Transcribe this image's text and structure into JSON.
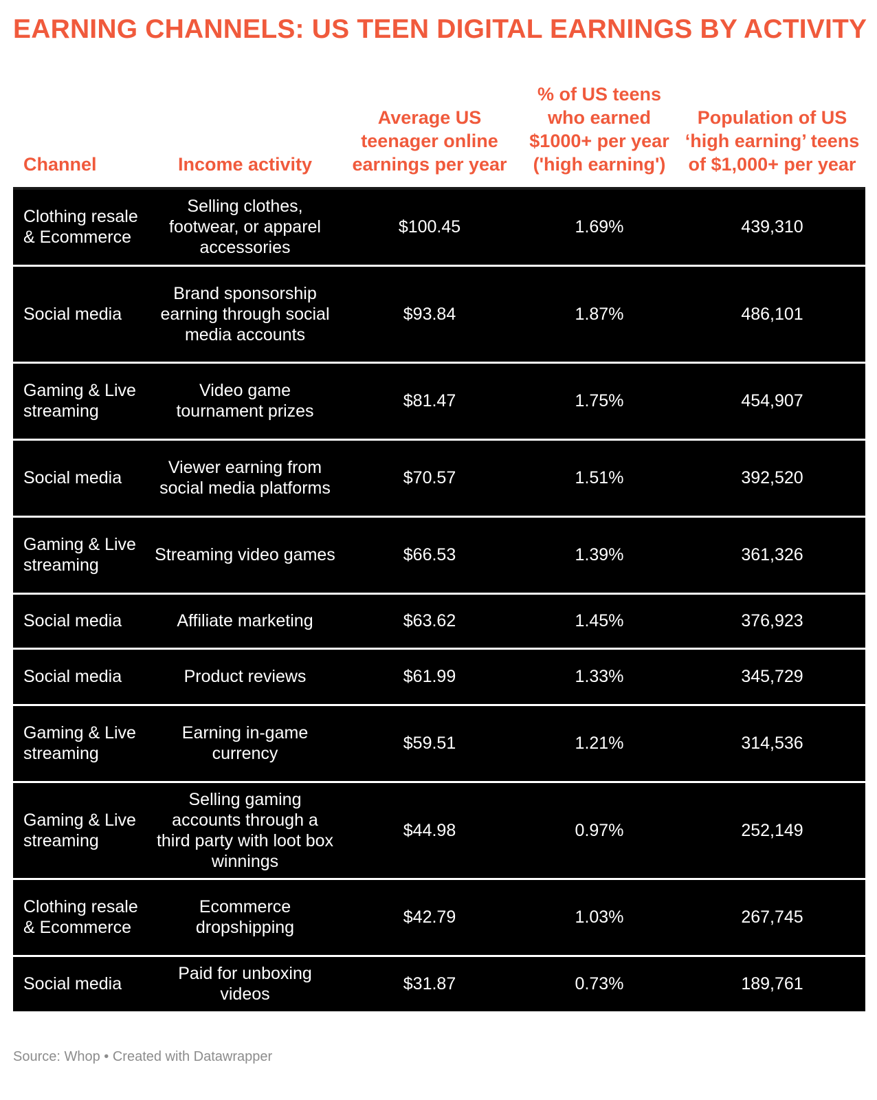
{
  "title": "EARNING CHANNELS: US TEEN DIGITAL EARNINGS BY ACTIVITY",
  "colors": {
    "accent": "#f05a3c",
    "row_bg": "#000000",
    "row_text": "#ffffff",
    "source_text": "#8c8c8c"
  },
  "chart_data": {
    "type": "table",
    "columns": [
      "Channel",
      "Income activity",
      "Average US teenager online earnings per year",
      "% of US teens who earned $1000+ per year ('high earning')",
      "Population of US ‘high earning’ teens of $1,000+ per year"
    ],
    "rows": [
      [
        "Clothing resale & Ecommerce",
        "Selling clothes, footwear, or apparel accessories",
        "$100.45",
        "1.69%",
        "439,310"
      ],
      [
        "Social media",
        "Brand sponsorship earning through social media accounts",
        "$93.84",
        "1.87%",
        "486,101"
      ],
      [
        "Gaming & Live streaming",
        "Video game tournament prizes",
        "$81.47",
        "1.75%",
        "454,907"
      ],
      [
        "Social media",
        "Viewer earning from social media platforms",
        "$70.57",
        "1.51%",
        "392,520"
      ],
      [
        "Gaming & Live streaming",
        "Streaming video games",
        "$66.53",
        "1.39%",
        "361,326"
      ],
      [
        "Social media",
        "Affiliate marketing",
        "$63.62",
        "1.45%",
        "376,923"
      ],
      [
        "Social media",
        "Product reviews",
        "$61.99",
        "1.33%",
        "345,729"
      ],
      [
        "Gaming & Live streaming",
        "Earning in-game currency",
        "$59.51",
        "1.21%",
        "314,536"
      ],
      [
        "Gaming & Live streaming",
        "Selling gaming accounts through a third party with loot box winnings",
        "$44.98",
        "0.97%",
        "252,149"
      ],
      [
        "Clothing resale & Ecommerce",
        "Ecommerce dropshipping",
        "$42.79",
        "1.03%",
        "267,745"
      ],
      [
        "Social media",
        "Paid for unboxing videos",
        "$31.87",
        "0.73%",
        "189,761"
      ]
    ]
  },
  "source": "Source: Whop • Created with Datawrapper"
}
